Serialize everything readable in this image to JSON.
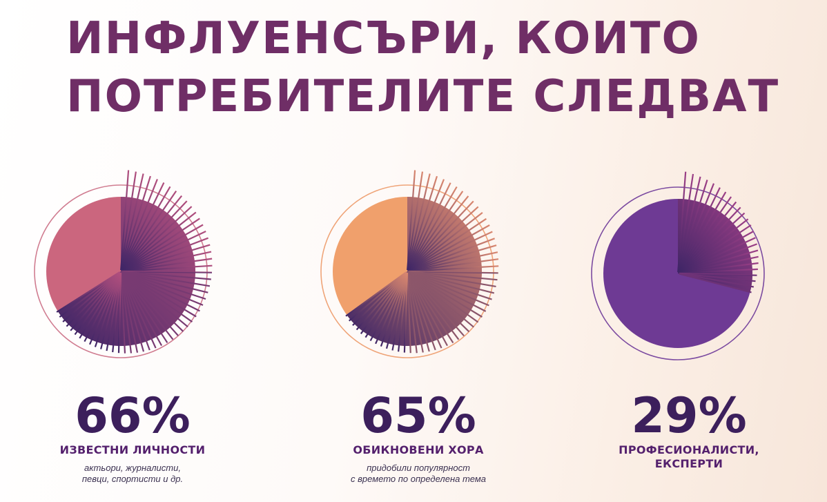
{
  "title": {
    "line1": "ИНФЛУЕНСЪРИ, КОИТО",
    "line2": "ПОТРЕБИТЕЛИТЕ СЛЕДВАТ"
  },
  "chart_data": {
    "type": "pie",
    "series": [
      {
        "value": 66,
        "label": "66%",
        "category": "ИЗВЕСТНИ ЛИЧНОСТИ",
        "note_line1": "актьори, журналисти,",
        "note_line2": "певци, спортисти и др.",
        "fill_color": "#cb667e",
        "ring_color": "#d07c90",
        "ray_color": "#b14f7e"
      },
      {
        "value": 65,
        "label": "65%",
        "category": "ОБИКНОВЕНИ ХОРА",
        "note_line1": "придобили популярност",
        "note_line2": "с времето по определена тема",
        "fill_color": "#f0a06c",
        "ring_color": "#efa478",
        "ray_color": "#d9876f"
      },
      {
        "value": 29,
        "label": "29%",
        "category_line1": "ПРОФЕСИОНАЛИСТИ,",
        "category_line2": "ЕКСПЕРТИ",
        "fill_color": "#6e3a94",
        "ring_color": "#7b4aa0",
        "ray_color": "#9c3f86"
      }
    ]
  },
  "colors": {
    "title": "#6f2e66",
    "percent": "#3c1f5c",
    "label": "#54206d",
    "ray_dark": "#3e2566"
  }
}
